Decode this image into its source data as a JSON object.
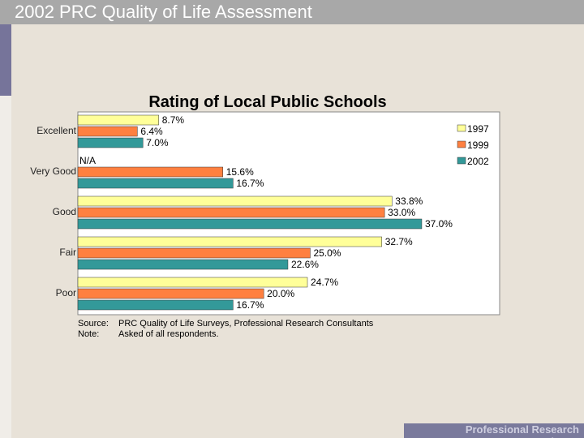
{
  "header": {
    "title": "2002 PRC Quality of Life Assessment"
  },
  "footer": {
    "brand": "Professional Research Consultants"
  },
  "colors": {
    "background": "#e8e2d8",
    "title_bar": "#a8a8a8",
    "accent": "#76749a",
    "footer": "#7a7a9c",
    "s1997": "#ffff99",
    "s1999": "#ff8040",
    "s2002": "#339999"
  },
  "chart_data": {
    "type": "bar",
    "orientation": "horizontal",
    "title": "Rating of Local Public Schools",
    "categories": [
      "Excellent",
      "Very Good",
      "Good",
      "Fair",
      "Poor"
    ],
    "series": [
      {
        "name": "1997",
        "color": "#ffff99",
        "values": [
          8.7,
          null,
          33.8,
          32.7,
          24.7
        ],
        "labels": [
          "8.7%",
          "N/A",
          "33.8%",
          "32.7%",
          "24.7%"
        ]
      },
      {
        "name": "1999",
        "color": "#ff8040",
        "values": [
          6.4,
          15.6,
          33.0,
          25.0,
          20.0
        ],
        "labels": [
          "6.4%",
          "15.6%",
          "33.0%",
          "25.0%",
          "20.0%"
        ]
      },
      {
        "name": "2002",
        "color": "#339999",
        "values": [
          7.0,
          16.7,
          37.0,
          22.6,
          16.7
        ],
        "labels": [
          "7.0%",
          "16.7%",
          "37.0%",
          "22.6%",
          "16.7%"
        ]
      }
    ],
    "xlim": [
      0,
      48
    ],
    "grid": false,
    "legend_position": "top-right",
    "notes": [
      {
        "label": "Source:",
        "text": "PRC Quality of Life Surveys, Professional Research Consultants"
      },
      {
        "label": "Note:",
        "text": "Asked of all respondents."
      }
    ]
  }
}
